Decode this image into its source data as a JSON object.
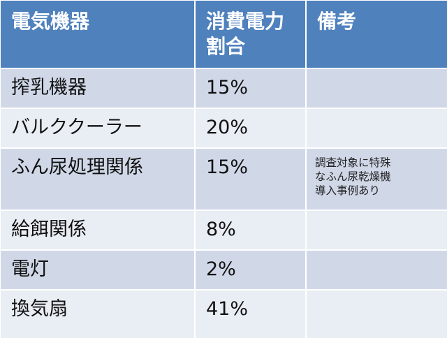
{
  "table": {
    "headers": [
      "電気機器",
      "消費電力\n割合",
      "備考"
    ],
    "rows": [
      {
        "device": "搾乳機器",
        "share": "15%",
        "note": ""
      },
      {
        "device": "バルククーラー",
        "share": "20%",
        "note": ""
      },
      {
        "device": "ふん尿処理関係",
        "share": "15%",
        "note": "調査対象に特殊\nなふん尿乾燥機\n導入事例あり"
      },
      {
        "device": "給餌関係",
        "share": "8%",
        "note": ""
      },
      {
        "device": "電灯",
        "share": "2%",
        "note": ""
      },
      {
        "device": "換気扇",
        "share": "41%",
        "note": ""
      }
    ]
  },
  "colors": {
    "header_bg": "#4f81bd",
    "row_odd_bg": "#d0d8e8",
    "row_even_bg": "#e9edf4"
  }
}
